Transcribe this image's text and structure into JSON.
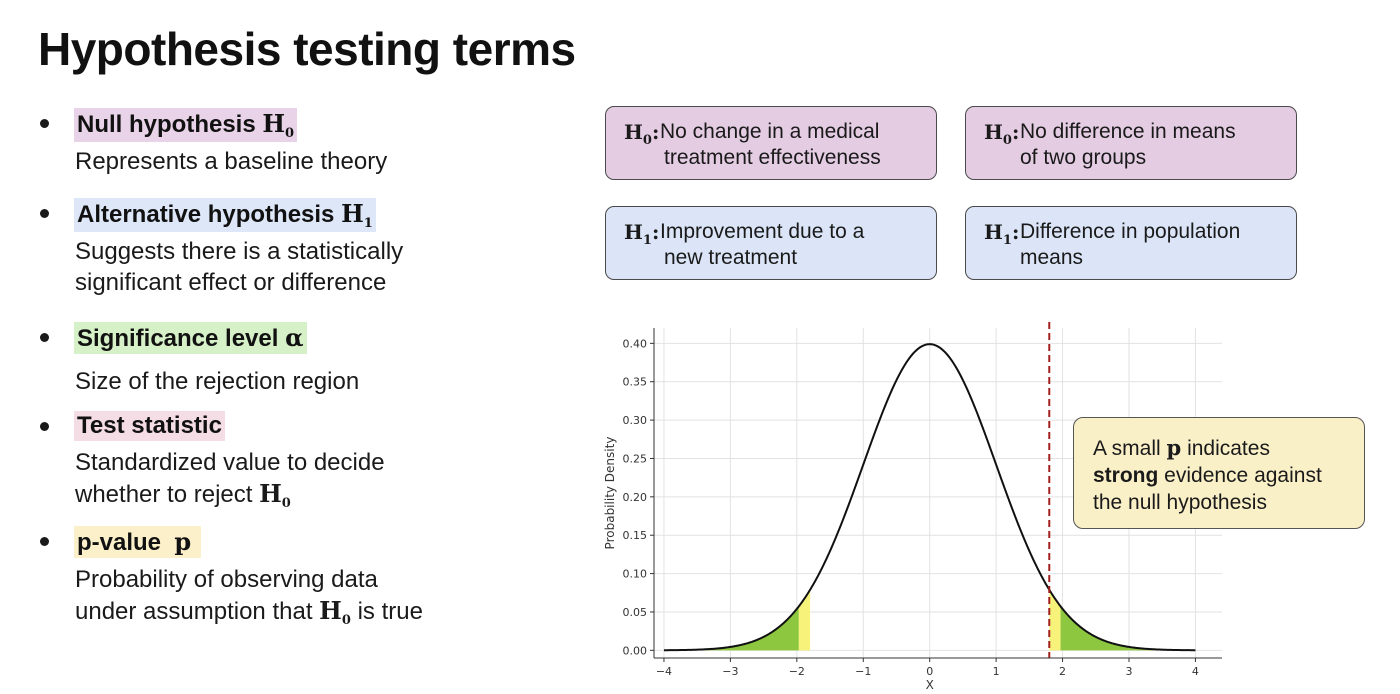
{
  "title": "Hypothesis testing terms",
  "terms": [
    {
      "term": "Null hypothesis",
      "symbol": "H",
      "sub": "0",
      "desc": [
        "Represents a baseline theory"
      ]
    },
    {
      "term": "Alternative hypothesis",
      "symbol": "H",
      "sub": "1",
      "desc": [
        "Suggests there is a statistically",
        "significant effect or difference"
      ]
    },
    {
      "term": "Significance level",
      "symbol": "α",
      "sub": "",
      "desc": [
        "Size of the rejection region"
      ]
    },
    {
      "term": "Test statistic",
      "symbol": "",
      "sub": "",
      "desc": [
        "Standardized value to decide",
        "whether to reject"
      ],
      "desc_symbol": "H",
      "desc_sub": "0"
    },
    {
      "term": "p-value",
      "symbol": "p",
      "sub": "",
      "desc": [
        "Probability of observing data",
        "under assumption that"
      ],
      "desc_symbol": "H",
      "desc_sub": "0",
      "desc_tail": "is true"
    }
  ],
  "examples": [
    {
      "symbol": "H",
      "sub": "0",
      "line1": "No change in a medical",
      "line2": "treatment effectiveness"
    },
    {
      "symbol": "H",
      "sub": "0",
      "line1": "No difference in means",
      "line2": "of two groups"
    },
    {
      "symbol": "H",
      "sub": "1",
      "line1": "Improvement due to a",
      "line2": "new treatment"
    },
    {
      "symbol": "H",
      "sub": "1",
      "line1": "Difference in population",
      "line2": "means"
    }
  ],
  "callout": {
    "part1": "A small",
    "p": "p",
    "part2": "indicates",
    "strong": "strong",
    "part3": "evidence against",
    "line3": "the null hypothesis"
  },
  "chart_data": {
    "type": "line",
    "series": [
      {
        "distribution": "standard normal pdf",
        "mean": 0,
        "sd": 1
      }
    ],
    "xlabel": "X",
    "ylabel": "Probability Density",
    "x_ticks": [
      "−4",
      "−3",
      "−2",
      "−1",
      "0",
      "1",
      "2",
      "3",
      "4"
    ],
    "y_ticks": [
      "0.00",
      "0.05",
      "0.10",
      "0.15",
      "0.20",
      "0.25",
      "0.30",
      "0.35",
      "0.40"
    ],
    "xlim": [
      -4.15,
      4.4
    ],
    "ylim": [
      -0.01,
      0.42
    ],
    "grid": true,
    "critical_value": 1.8,
    "shaded_tails": [
      [
        -4,
        -1.8
      ],
      [
        1.8,
        4
      ]
    ],
    "colors": {
      "line": "#111111",
      "critical": "#a3201e",
      "fill_green": "#8dc63f",
      "fill_yellow": "#f6f27a"
    }
  }
}
